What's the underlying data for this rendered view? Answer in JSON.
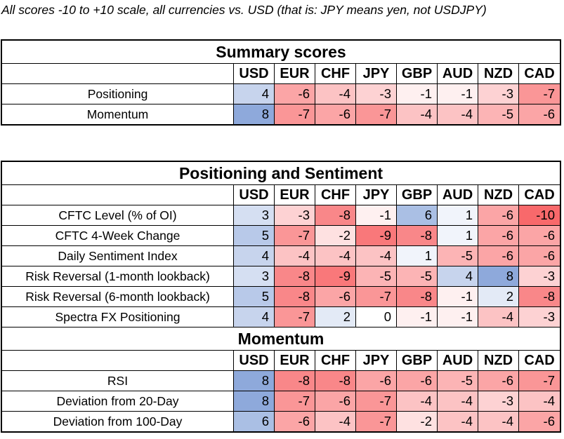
{
  "note": "All scores -10 to +10 scale, all currencies vs. USD (that is: JPY means yen, not USDJPY)",
  "currencies": [
    "USD",
    "EUR",
    "CHF",
    "JPY",
    "GBP",
    "AUD",
    "NZD",
    "CAD"
  ],
  "sections": [
    {
      "title": "Summary scores",
      "rows": [
        {
          "label": "Positioning",
          "values": [
            4,
            -6,
            -4,
            -3,
            -1,
            -1,
            -3,
            -7
          ]
        },
        {
          "label": "Momentum",
          "values": [
            8,
            -7,
            -6,
            -7,
            -4,
            -4,
            -5,
            -6
          ]
        }
      ]
    },
    {
      "title": "Positioning and Sentiment",
      "rows": [
        {
          "label": "CFTC Level (% of OI)",
          "values": [
            3,
            -3,
            -8,
            -1,
            6,
            1,
            -6,
            -10
          ]
        },
        {
          "label": "CFTC 4-Week Change",
          "values": [
            5,
            -7,
            -2,
            -9,
            -8,
            1,
            -6,
            -6
          ]
        },
        {
          "label": "Daily Sentiment Index",
          "values": [
            4,
            -4,
            -4,
            -4,
            1,
            -5,
            -6,
            -6
          ]
        },
        {
          "label": "Risk Reversal (1-month lookback)",
          "values": [
            3,
            -8,
            -9,
            -5,
            -5,
            4,
            8,
            -3
          ]
        },
        {
          "label": "Risk Reversal (6-month lookback)",
          "values": [
            5,
            -8,
            -6,
            -7,
            -8,
            -1,
            2,
            -8
          ]
        },
        {
          "label": "Spectra FX Positioning",
          "values": [
            4,
            -7,
            2,
            0,
            -1,
            -1,
            -4,
            -3
          ]
        }
      ]
    },
    {
      "title": "Momentum",
      "rows": [
        {
          "label": "RSI",
          "values": [
            8,
            -8,
            -8,
            -6,
            -6,
            -5,
            -6,
            -7
          ]
        },
        {
          "label": "Deviation from 20-Day",
          "values": [
            8,
            -7,
            -6,
            -7,
            -4,
            -4,
            -3,
            -4
          ]
        },
        {
          "label": "Deviation from 100-Day",
          "values": [
            6,
            -6,
            -4,
            -7,
            -2,
            -4,
            -4,
            -6
          ]
        }
      ]
    }
  ],
  "colors": {
    "positive": "#8ea9db",
    "negative": "#f8696b",
    "neutral": "#ffffff",
    "border": "#000000"
  }
}
